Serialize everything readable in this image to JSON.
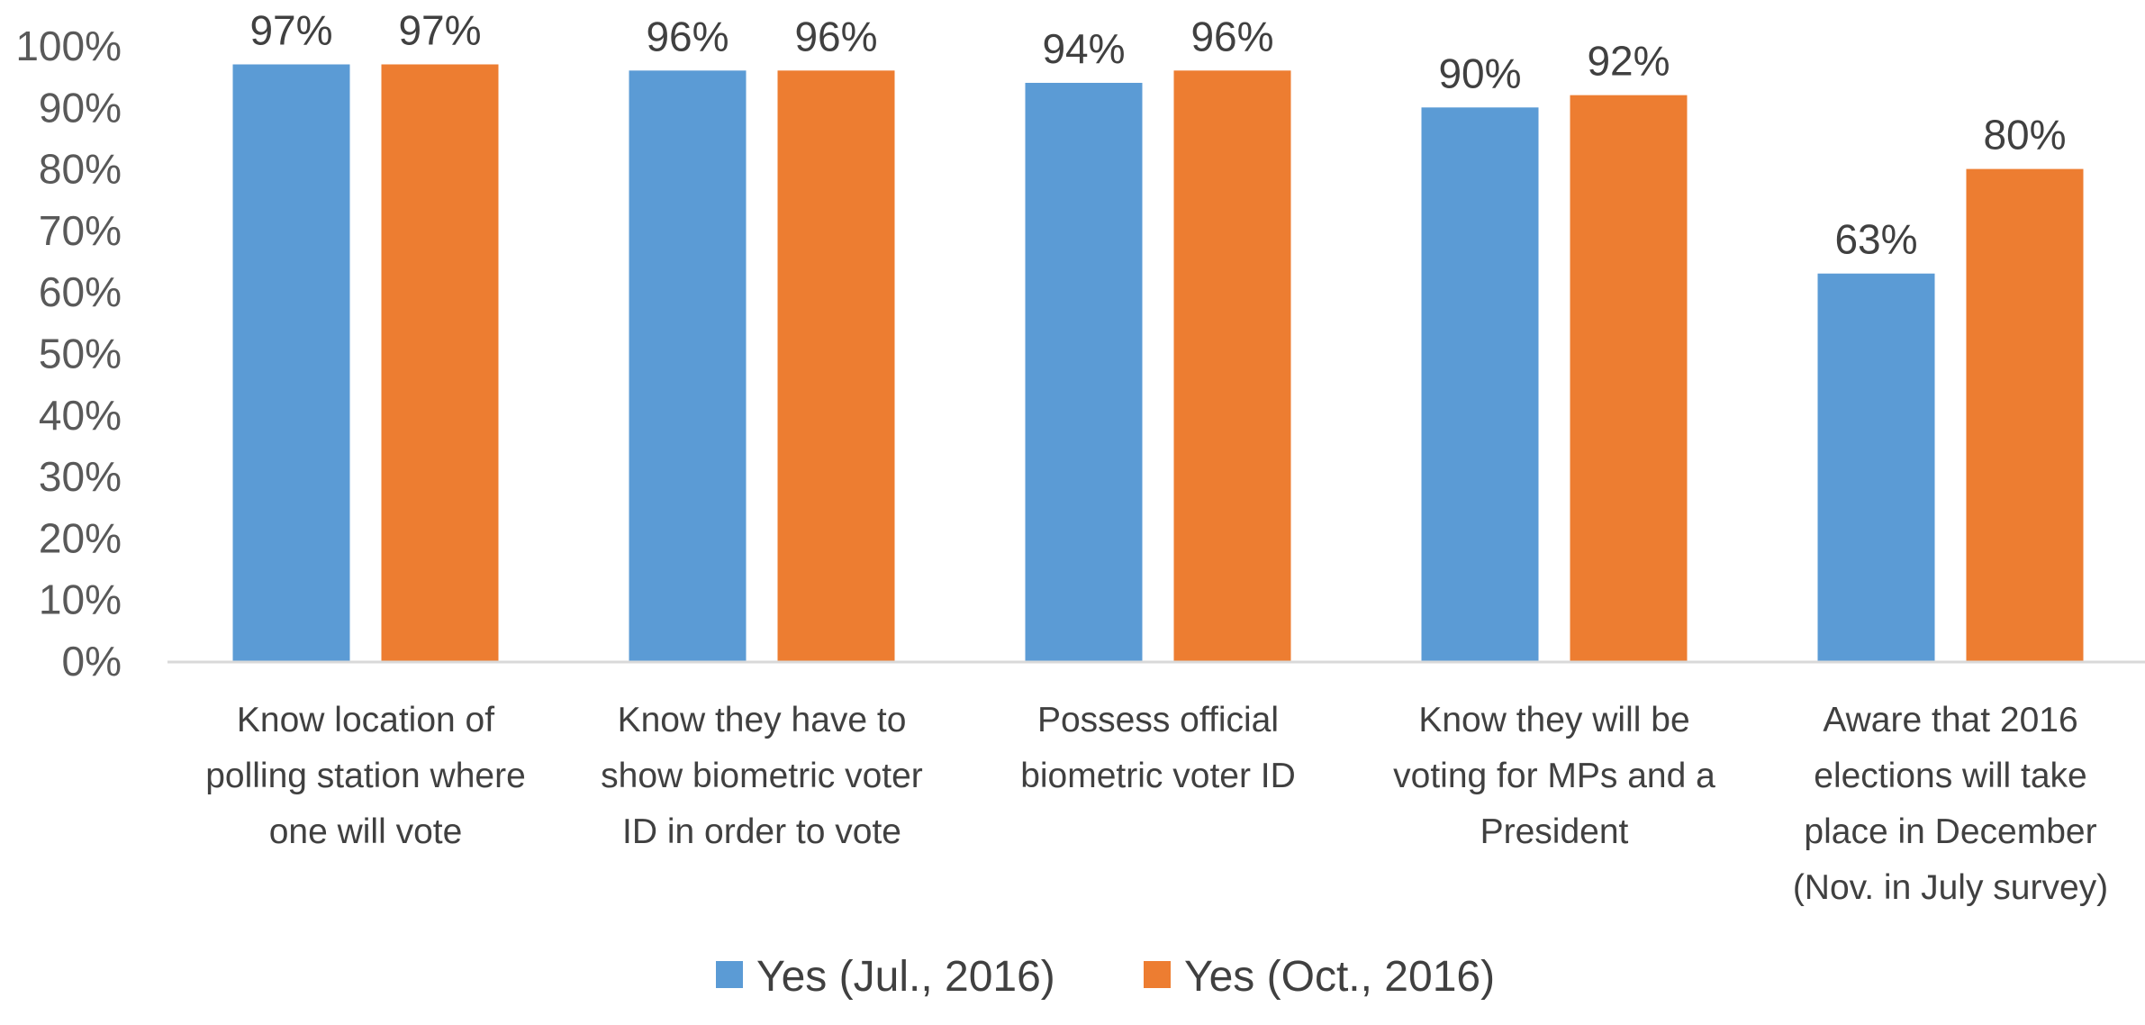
{
  "chart_data": {
    "type": "bar",
    "title": "",
    "xlabel": "",
    "ylabel": "",
    "ylim": [
      0,
      100
    ],
    "y_ticks": [
      "0%",
      "10%",
      "20%",
      "30%",
      "40%",
      "50%",
      "60%",
      "70%",
      "80%",
      "90%",
      "100%"
    ],
    "grid": false,
    "legend_position": "bottom",
    "categories": [
      [
        "Know location of",
        "polling station where",
        "one will vote"
      ],
      [
        "Know they have to",
        "show biometric voter",
        "ID in order to vote"
      ],
      [
        "Possess official",
        "biometric voter ID"
      ],
      [
        "Know they will be",
        "voting for MPs and a",
        "President"
      ],
      [
        "Aware that 2016",
        "elections will take",
        "place in December",
        "(Nov. in July survey)"
      ]
    ],
    "series": [
      {
        "name": "Yes (Jul., 2016)",
        "color": "#5B9BD5",
        "values": [
          97,
          96,
          94,
          90,
          63
        ],
        "labels": [
          "97%",
          "96%",
          "94%",
          "90%",
          "63%"
        ]
      },
      {
        "name": "Yes (Oct., 2016)",
        "color": "#ED7D31",
        "values": [
          97,
          96,
          96,
          92,
          80
        ],
        "labels": [
          "97%",
          "96%",
          "96%",
          "92%",
          "80%"
        ]
      }
    ]
  }
}
